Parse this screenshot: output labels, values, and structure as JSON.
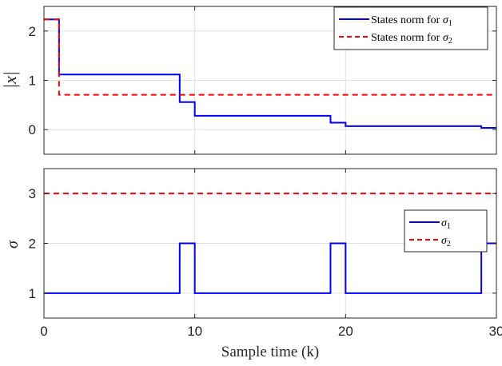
{
  "chart_data": [
    {
      "type": "line",
      "step": true,
      "ylabel": "|x|",
      "xlim": [
        0,
        30
      ],
      "ylim": [
        -0.5,
        2.5
      ],
      "xticks": [
        0,
        10,
        20,
        30
      ],
      "yticks": [
        0,
        1,
        2
      ],
      "grid": true,
      "legend_position": "top-right",
      "series": [
        {
          "name": "States norm for σ1",
          "legend_main": "States norm for ",
          "legend_sym": "σ",
          "legend_sub": "1",
          "color": "#0000ff",
          "dash": "solid",
          "x": [
            0,
            1,
            9,
            10,
            19,
            20,
            29,
            30
          ],
          "y": [
            2.236,
            1.118,
            0.559,
            0.28,
            0.14,
            0.07,
            0.035,
            0.035
          ]
        },
        {
          "name": "States norm for σ2",
          "legend_main": "States norm for ",
          "legend_sym": "σ",
          "legend_sub": "2",
          "color": "#ff0000",
          "dash": "dashed",
          "x": [
            0,
            1,
            30
          ],
          "y": [
            2.236,
            0.707,
            0.707
          ]
        }
      ]
    },
    {
      "type": "line",
      "step": true,
      "ylabel": "σ",
      "xlabel": "Sample time (k)",
      "xlim": [
        0,
        30
      ],
      "ylim": [
        0.5,
        3.5
      ],
      "xticks": [
        0,
        10,
        20,
        30
      ],
      "yticks": [
        1,
        2,
        3
      ],
      "grid": true,
      "legend_position": "right",
      "series": [
        {
          "name": "σ1",
          "legend_main": "",
          "legend_sym": "σ",
          "legend_sub": "1",
          "color": "#0000ff",
          "dash": "solid",
          "x": [
            0,
            9,
            10,
            19,
            20,
            29,
            30
          ],
          "y": [
            1,
            2,
            1,
            2,
            1,
            2,
            2
          ]
        },
        {
          "name": "σ2",
          "legend_main": "",
          "legend_sym": "σ",
          "legend_sub": "2",
          "color": "#ff0000",
          "dash": "dashed",
          "x": [
            0,
            30
          ],
          "y": [
            3,
            3
          ]
        }
      ]
    }
  ]
}
